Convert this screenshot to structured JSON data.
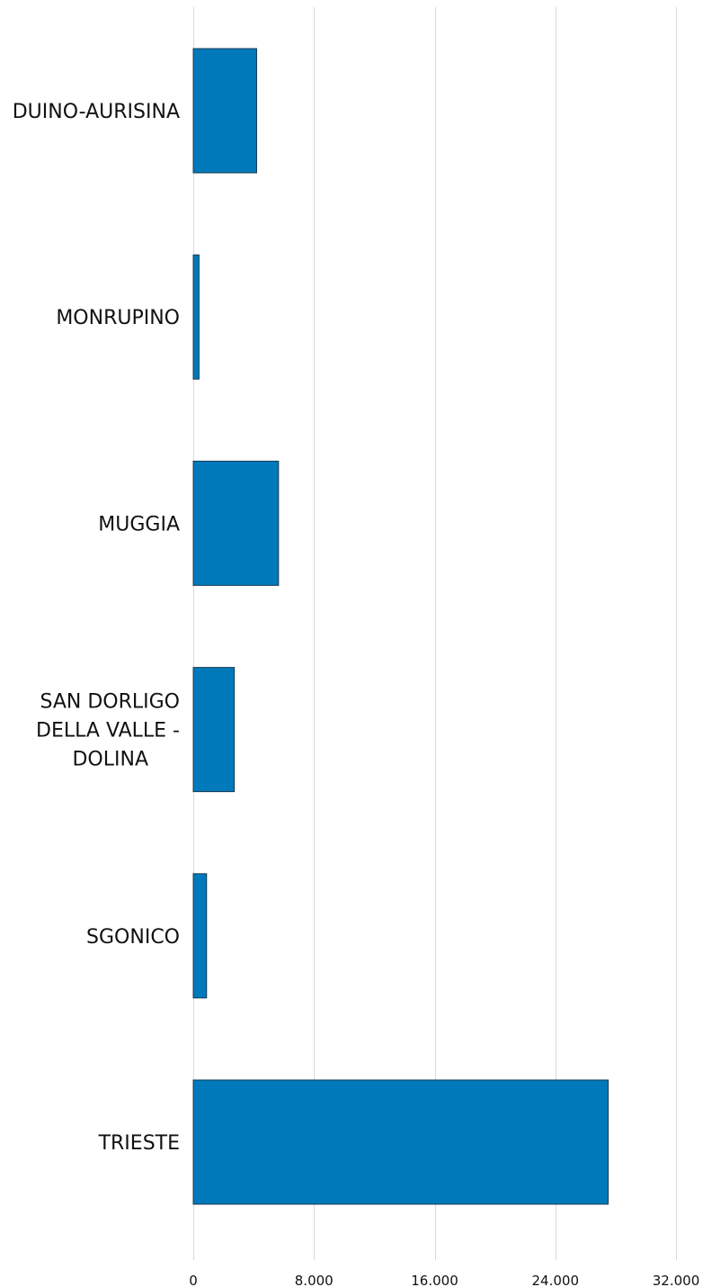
{
  "chart_data": {
    "type": "bar",
    "orientation": "horizontal",
    "title": "",
    "xlabel": "",
    "ylabel": "",
    "categories": [
      [
        "DUINO-AURISINA"
      ],
      [
        "MONRUPINO"
      ],
      [
        "MUGGIA"
      ],
      [
        "SAN DORLIGO",
        "DELLA VALLE -",
        "DOLINA"
      ],
      [
        "SGONICO"
      ],
      [
        "TRIESTE"
      ]
    ],
    "values": [
      4200,
      380,
      5650,
      2720,
      880,
      27500
    ],
    "xlim": [
      0,
      32000
    ],
    "ticks": [
      0,
      8000,
      16000,
      24000,
      32000
    ],
    "tick_labels": [
      "0",
      "8.000",
      "16.000",
      "24.000",
      "32.000"
    ],
    "grid": true,
    "legend": "none",
    "bar_color": "#0079bb",
    "bar_edge_color": "#1a3a52",
    "grid_color": "#d9d9d9"
  }
}
